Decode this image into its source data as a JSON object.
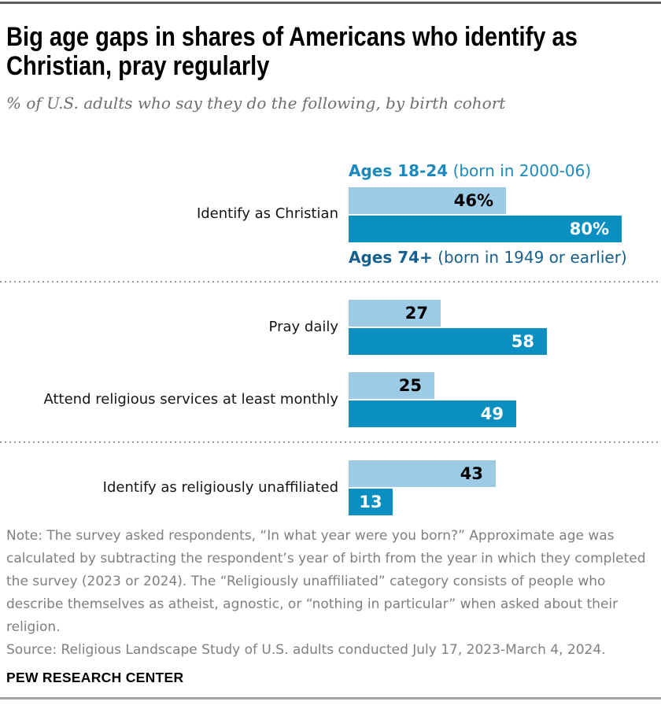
{
  "header": {
    "title": "Big age gaps in shares of Americans who identify as Christian, pray regularly",
    "subtitle": "% of U.S. adults who say they do the following, by birth cohort"
  },
  "chart_data": {
    "type": "bar",
    "orientation": "horizontal",
    "unit": "%",
    "axis": "none",
    "grid": false,
    "legend_position": "inline-first-group",
    "categories": [
      "Identify as Christian",
      "Pray daily",
      "Attend religious services at least monthly",
      "Identify as religiously unaffiliated"
    ],
    "series": [
      {
        "name": "Ages 18-24",
        "detail": "(born in 2000-06)",
        "color": "#9dcae4",
        "values": [
          46,
          27,
          25,
          43
        ]
      },
      {
        "name": "Ages 74+",
        "detail": "(born in 1949 or earlier)",
        "color": "#0a90c0",
        "values": [
          80,
          58,
          49,
          13
        ]
      }
    ],
    "legend": {
      "young": {
        "name": "Ages 18-24",
        "detail": "(born in 2000-06)",
        "color": "#1c89be"
      },
      "old": {
        "name": "Ages 74+",
        "detail": "(born in 1949 or earlier)",
        "color": "#15608f"
      }
    },
    "rows": [
      {
        "category": "Identify as Christian",
        "young": {
          "value": 46,
          "label": "46%"
        },
        "old": {
          "value": 80,
          "label": "80%"
        }
      },
      {
        "category": "Pray daily",
        "young": {
          "value": 27,
          "label": "27"
        },
        "old": {
          "value": 58,
          "label": "58"
        }
      },
      {
        "category": "Attend religious services at least monthly",
        "young": {
          "value": 25,
          "label": "25"
        },
        "old": {
          "value": 49,
          "label": "49"
        }
      },
      {
        "category": "Identify as religiously unaffiliated",
        "young": {
          "value": 43,
          "label": "43"
        },
        "old": {
          "value": 13,
          "label": "13"
        }
      }
    ]
  },
  "footer": {
    "note": "Note: The survey asked respondents, “In what year were you born?” Approximate age was calculated by subtracting the respondent’s year of birth from the year in which they completed the survey (2023 or 2024). The “Religiously unaffiliated” category consists of people who describe themselves as atheist, agnostic, or “nothing in particular” when asked about their religion.",
    "source": "Source: Religious Landscape Study of U.S. adults conducted July 17, 2023-March 4, 2024.",
    "brand": "PEW RESEARCH CENTER"
  }
}
